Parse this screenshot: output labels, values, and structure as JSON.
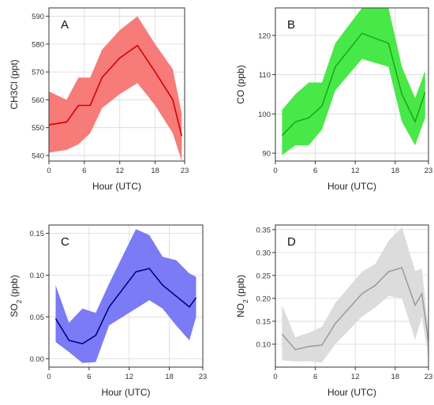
{
  "chart_data": [
    {
      "type": "line",
      "panel_label": "A",
      "xlabel": "Hour (UTC)",
      "ylabel": "CH3Cl (ppt)",
      "ylabel_sub": "",
      "ylabel_tail": "",
      "xlim": [
        0,
        23
      ],
      "ylim": [
        538,
        593
      ],
      "xticks": [
        0,
        6,
        12,
        18,
        23
      ],
      "yticks": [
        540,
        550,
        560,
        570,
        580,
        590
      ],
      "grid": true,
      "series_color": "#d40000",
      "band_color": "#f77b78",
      "series": [
        {
          "x": [
            0,
            3,
            5,
            7,
            9,
            12,
            15,
            18,
            21,
            22.5
          ],
          "values": [
            551,
            552,
            558,
            558,
            568,
            575,
            579.5,
            570,
            560,
            547
          ],
          "lower": [
            541,
            542,
            544,
            548,
            557,
            562,
            566,
            558,
            548,
            538
          ],
          "upper": [
            563,
            560,
            568,
            568,
            578,
            585,
            590,
            580,
            571,
            555
          ]
        }
      ]
    },
    {
      "type": "line",
      "panel_label": "B",
      "xlabel": "Hour (UTC)",
      "ylabel": "CO (ppb)",
      "ylabel_sub": "",
      "ylabel_tail": "",
      "xlim": [
        0,
        23
      ],
      "ylim": [
        88,
        127
      ],
      "xticks": [
        0,
        6,
        12,
        18,
        23
      ],
      "yticks": [
        90,
        100,
        110,
        120
      ],
      "grid": true,
      "series_color": "#1aaa1a",
      "band_color": "#48e848",
      "series": [
        {
          "x": [
            1,
            3,
            5,
            7,
            9,
            13,
            17,
            19,
            21,
            22.5
          ],
          "values": [
            94.5,
            98,
            99,
            102,
            112,
            120.5,
            118,
            105,
            98,
            105.5
          ],
          "lower": [
            89.5,
            92,
            92,
            96,
            106,
            114,
            112,
            98,
            92,
            99
          ],
          "upper": [
            101,
            105,
            108,
            108,
            118,
            127,
            127,
            112,
            104,
            111
          ]
        }
      ]
    },
    {
      "type": "line",
      "panel_label": "C",
      "xlabel": "Hour (UTC)",
      "ylabel": "SO",
      "ylabel_sub": "2",
      "ylabel_tail": " (ppb)",
      "xlim": [
        0,
        23
      ],
      "ylim": [
        -0.01,
        0.16
      ],
      "xticks": [
        0,
        6,
        12,
        18,
        23
      ],
      "yticks": [
        0.0,
        0.05,
        0.1,
        0.15
      ],
      "ytick_labels": [
        "0.00",
        "0.05",
        "0.10",
        "0.15"
      ],
      "grid": true,
      "series_color": "#00008b",
      "band_color": "#7b7bf6",
      "series": [
        {
          "x": [
            1,
            3,
            5,
            7,
            9,
            13,
            15,
            17,
            19,
            21,
            22
          ],
          "values": [
            0.048,
            0.022,
            0.018,
            0.028,
            0.062,
            0.104,
            0.108,
            0.088,
            0.075,
            0.062,
            0.073
          ],
          "lower": [
            0.02,
            0.008,
            -0.005,
            -0.004,
            0.04,
            0.06,
            0.07,
            0.06,
            0.04,
            0.022,
            0.05
          ],
          "upper": [
            0.088,
            0.043,
            0.06,
            0.055,
            0.09,
            0.155,
            0.148,
            0.122,
            0.118,
            0.102,
            0.098
          ]
        }
      ]
    },
    {
      "type": "line",
      "panel_label": "D",
      "xlabel": "Hour (UTC)",
      "ylabel": "NO",
      "ylabel_sub": "2",
      "ylabel_tail": " (ppb)",
      "xlim": [
        0,
        23
      ],
      "ylim": [
        0.05,
        0.36
      ],
      "xticks": [
        0,
        6,
        12,
        18,
        23
      ],
      "yticks": [
        0.1,
        0.15,
        0.2,
        0.25,
        0.3,
        0.35
      ],
      "ytick_labels": [
        "0.10",
        "0.15",
        "0.20",
        "0.25",
        "0.30",
        "0.35"
      ],
      "grid": true,
      "series_color": "#9e9e9e",
      "band_color": "#dcdcdc",
      "series": [
        {
          "x": [
            1,
            3,
            5,
            7,
            9,
            13,
            15,
            17,
            19,
            21,
            22,
            23
          ],
          "values": [
            0.122,
            0.088,
            0.095,
            0.098,
            0.145,
            0.21,
            0.228,
            0.258,
            0.267,
            0.185,
            0.21,
            0.105
          ],
          "lower": [
            0.065,
            0.062,
            0.063,
            0.06,
            0.1,
            0.16,
            0.18,
            0.205,
            0.2,
            0.11,
            0.16,
            0.07
          ],
          "upper": [
            0.185,
            0.115,
            0.125,
            0.138,
            0.19,
            0.258,
            0.275,
            0.325,
            0.355,
            0.26,
            0.265,
            0.13
          ]
        }
      ]
    }
  ]
}
